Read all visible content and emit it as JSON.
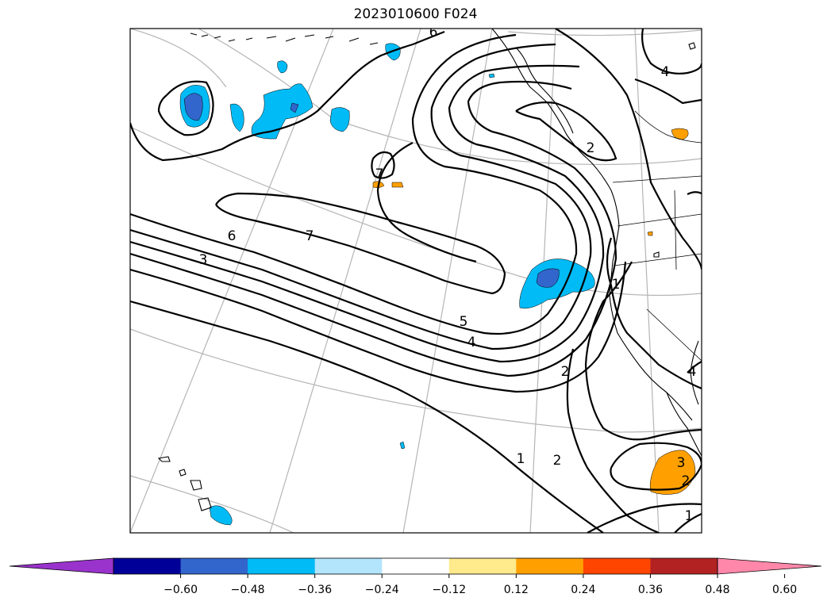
{
  "title": "2023010600 F024",
  "contour_labels": [
    "7",
    "6",
    "7",
    "3",
    "5",
    "4",
    "2",
    "1",
    "2",
    "4",
    "2",
    "1",
    "3",
    "2",
    "1",
    "4",
    "6"
  ],
  "colorbar": {
    "colors": [
      "#9933cc",
      "#000099",
      "#3366cc",
      "#00bbf5",
      "#b3e5fc",
      "#ffffff",
      "#ffea8c",
      "#ffa000",
      "#ff4500",
      "#b22222",
      "#ff88aa"
    ],
    "tick_labels": [
      "−0.60",
      "−0.48",
      "−0.36",
      "−0.24",
      "−0.12",
      "0.12",
      "0.24",
      "0.36",
      "0.48",
      "0.60"
    ],
    "extend": "both"
  },
  "shading_colors": {
    "light_neg": "#00bbf5",
    "mid_neg": "#3366cc",
    "pos": "#ffa000"
  }
}
